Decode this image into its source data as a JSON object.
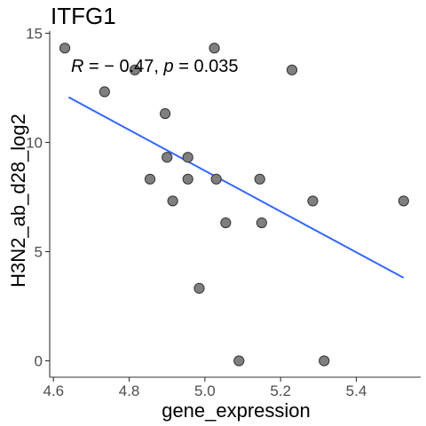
{
  "chart_data": {
    "type": "scatter",
    "title": "ITFG1",
    "xlabel": "gene_expression",
    "ylabel": "H3N2_ab_d28_log2",
    "xlim": [
      4.59,
      5.57
    ],
    "ylim": [
      -0.75,
      15.1
    ],
    "x_ticks": [
      4.6,
      4.8,
      5.0,
      5.2,
      5.4
    ],
    "x_tick_labels": [
      "4.6",
      "4.8",
      "5.0",
      "5.2",
      "5.4"
    ],
    "y_ticks": [
      0,
      5,
      10,
      15
    ],
    "y_tick_labels": [
      "0",
      "5",
      "10",
      "15"
    ],
    "points": [
      {
        "x": 4.63,
        "y": 14.32
      },
      {
        "x": 4.735,
        "y": 12.32
      },
      {
        "x": 4.815,
        "y": 13.32
      },
      {
        "x": 4.855,
        "y": 8.32
      },
      {
        "x": 4.895,
        "y": 11.32
      },
      {
        "x": 4.9,
        "y": 9.32
      },
      {
        "x": 4.915,
        "y": 7.32
      },
      {
        "x": 4.955,
        "y": 9.32
      },
      {
        "x": 4.955,
        "y": 8.32
      },
      {
        "x": 4.985,
        "y": 3.32
      },
      {
        "x": 5.025,
        "y": 14.32
      },
      {
        "x": 5.03,
        "y": 8.32
      },
      {
        "x": 5.055,
        "y": 6.32
      },
      {
        "x": 5.09,
        "y": 0.0
      },
      {
        "x": 5.145,
        "y": 8.32
      },
      {
        "x": 5.15,
        "y": 6.32
      },
      {
        "x": 5.23,
        "y": 13.32
      },
      {
        "x": 5.285,
        "y": 7.32
      },
      {
        "x": 5.315,
        "y": 0.0
      },
      {
        "x": 5.525,
        "y": 7.32
      }
    ],
    "fit_line": {
      "x": [
        4.64,
        5.525
      ],
      "y": [
        12.07,
        3.8
      ],
      "color": "#3366ff"
    },
    "point_color": "#7f7f7f",
    "grid": false,
    "annotation": {
      "R_label": "R",
      "R_value": " = − 0.47, ",
      "p_label": "p",
      "p_value": " = 0.035"
    }
  }
}
